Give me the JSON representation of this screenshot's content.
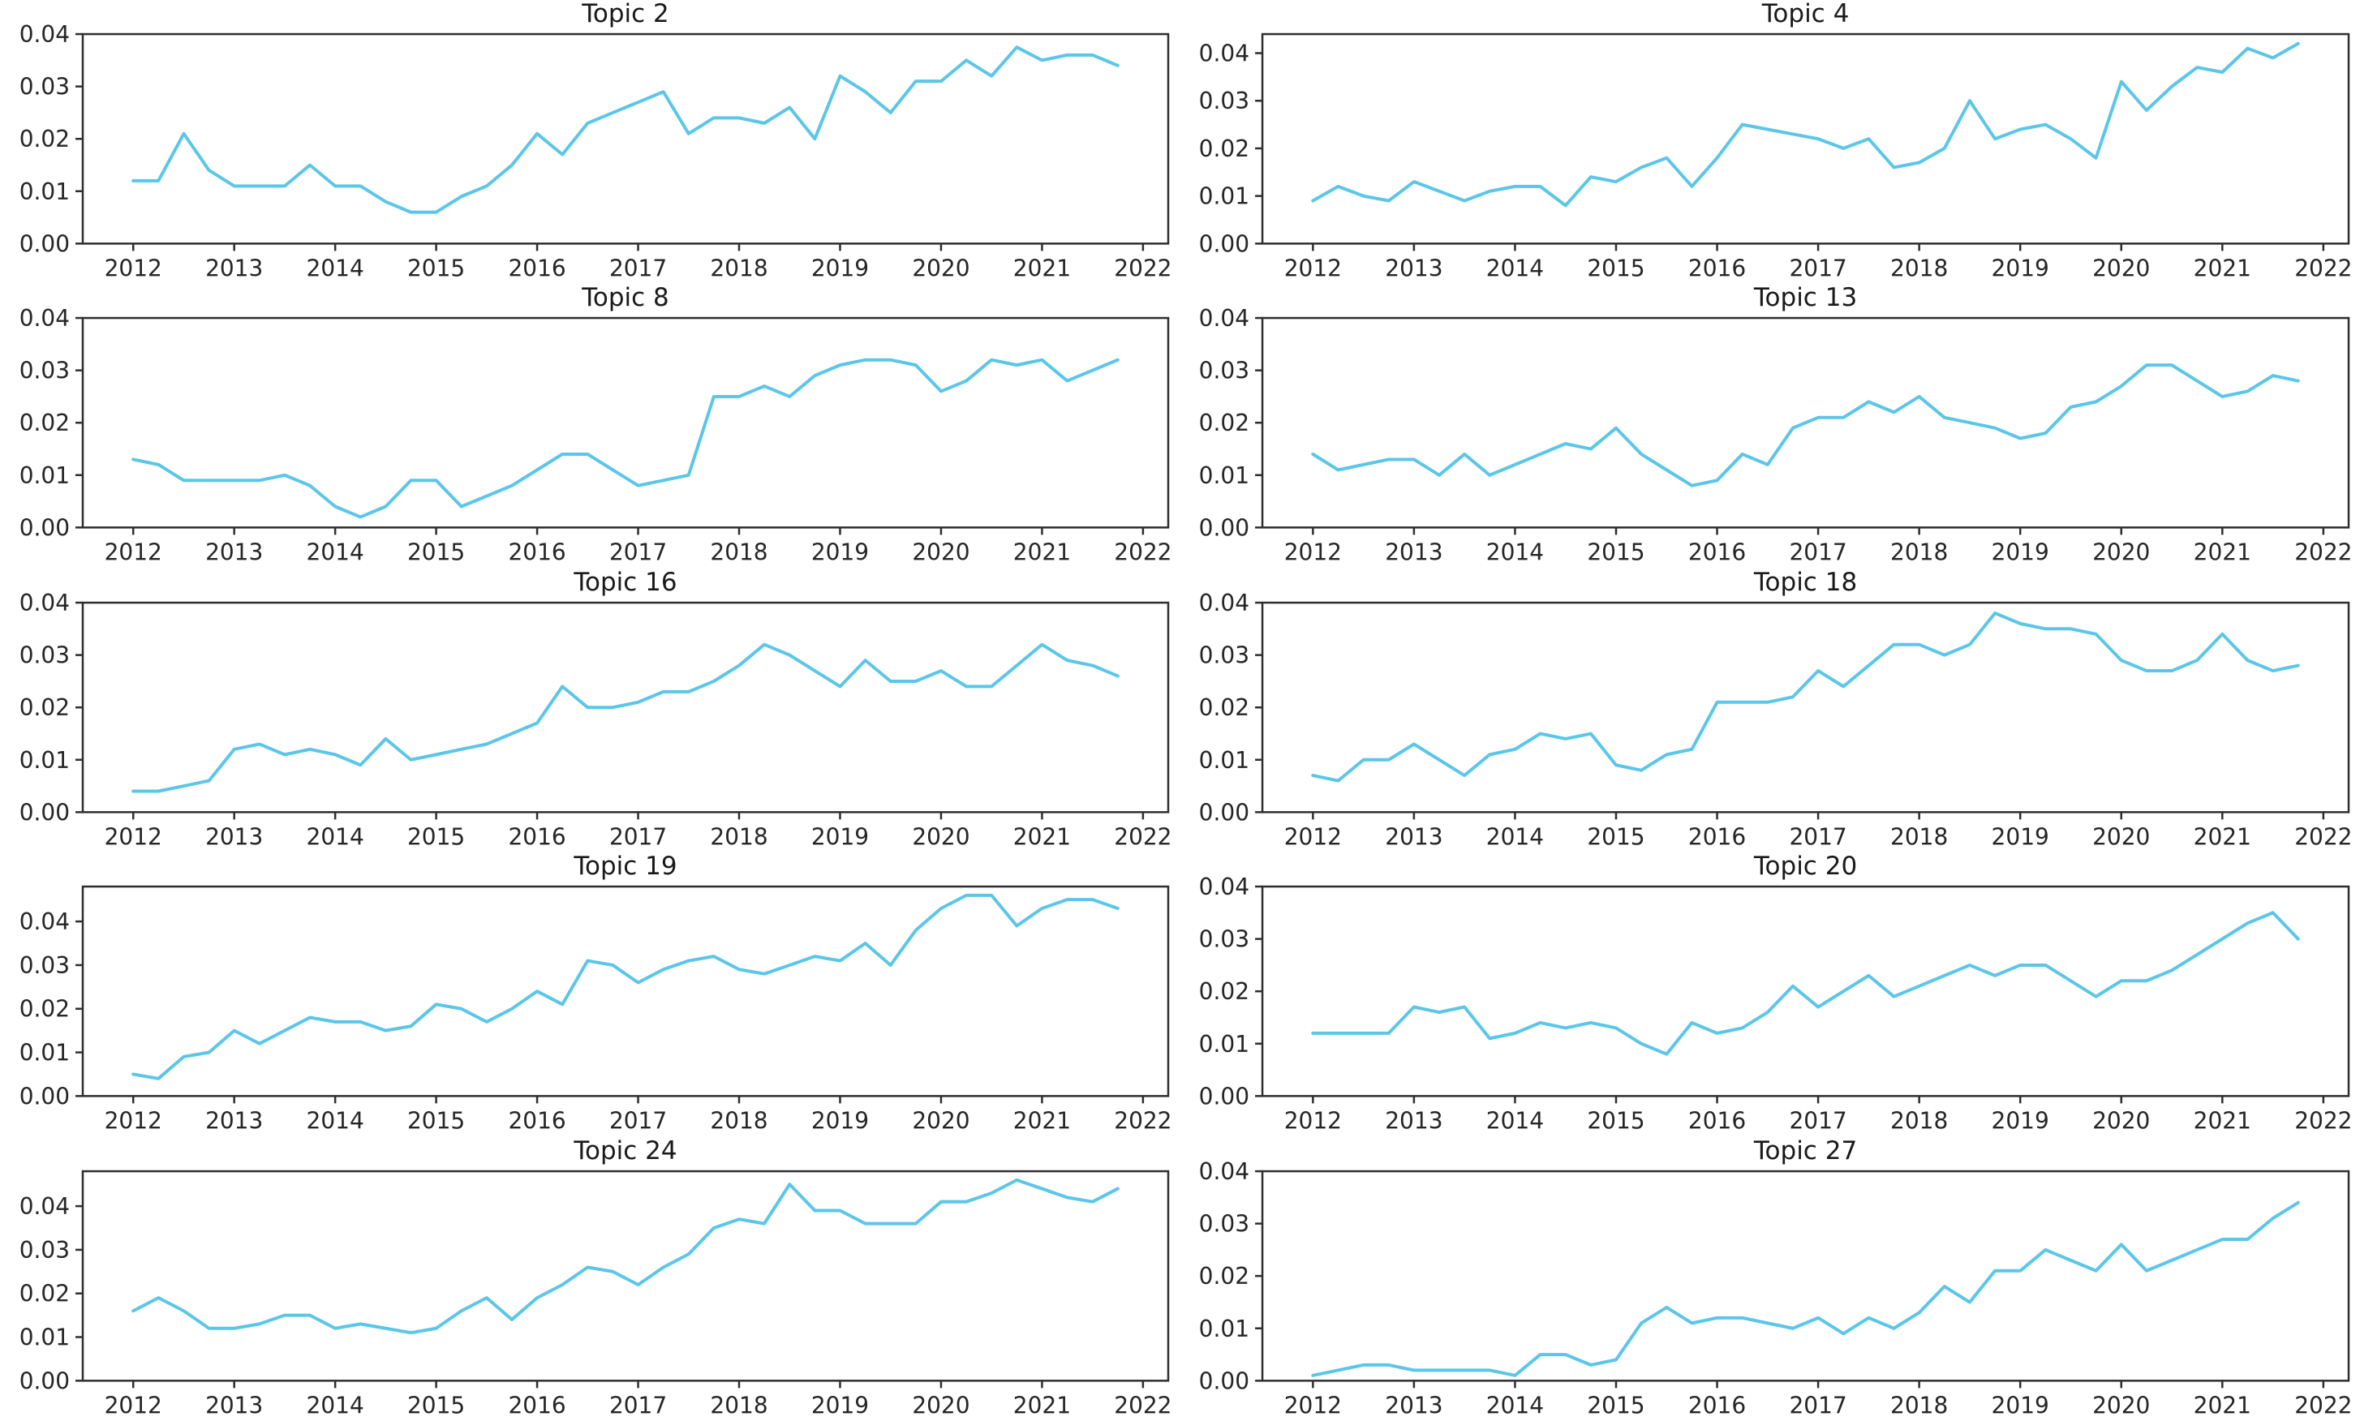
{
  "figure": {
    "background": "#ffffff",
    "line_color": "#5bc6e8",
    "spine_color": "#2e2e2e",
    "tick_color": "#2e2e2e",
    "text_color": "#1a1a1a",
    "x_tick_labels": [
      "2012",
      "2013",
      "2014",
      "2015",
      "2016",
      "2017",
      "2018",
      "2019",
      "2020",
      "2021",
      "2022"
    ],
    "y_tick_labels": [
      "0.00",
      "0.01",
      "0.02",
      "0.03",
      "0.04"
    ],
    "y_tick_values": [
      0,
      0.01,
      0.02,
      0.03,
      0.04
    ],
    "xlim": [
      2011.5,
      2022.25
    ]
  },
  "chart_data": [
    {
      "type": "line",
      "title": "Topic 2",
      "x_start": 2012,
      "x_step": 0.25,
      "xlabel": "",
      "ylabel": "",
      "ylim": [
        0,
        0.04
      ],
      "grid": false,
      "legend": "none",
      "values": [
        0.012,
        0.012,
        0.021,
        0.014,
        0.011,
        0.011,
        0.011,
        0.015,
        0.011,
        0.011,
        0.008,
        0.006,
        0.006,
        0.009,
        0.011,
        0.015,
        0.021,
        0.017,
        0.023,
        0.025,
        0.027,
        0.029,
        0.021,
        0.024,
        0.024,
        0.023,
        0.026,
        0.02,
        0.032,
        0.029,
        0.025,
        0.031,
        0.031,
        0.035,
        0.032,
        0.0375,
        0.035,
        0.036,
        0.036,
        0.034
      ]
    },
    {
      "type": "line",
      "title": "Topic 4",
      "x_start": 2012,
      "x_step": 0.25,
      "xlabel": "",
      "ylabel": "",
      "ylim": [
        0,
        0.044
      ],
      "grid": false,
      "legend": "none",
      "values": [
        0.009,
        0.012,
        0.01,
        0.009,
        0.013,
        0.011,
        0.009,
        0.011,
        0.012,
        0.012,
        0.008,
        0.014,
        0.013,
        0.016,
        0.018,
        0.012,
        0.018,
        0.025,
        0.024,
        0.023,
        0.022,
        0.02,
        0.022,
        0.016,
        0.017,
        0.02,
        0.03,
        0.022,
        0.024,
        0.025,
        0.022,
        0.018,
        0.034,
        0.028,
        0.033,
        0.037,
        0.036,
        0.041,
        0.039,
        0.042
      ]
    },
    {
      "type": "line",
      "title": "Topic 8",
      "x_start": 2012,
      "x_step": 0.25,
      "xlabel": "",
      "ylabel": "",
      "ylim": [
        0,
        0.04
      ],
      "grid": false,
      "legend": "none",
      "values": [
        0.013,
        0.012,
        0.009,
        0.009,
        0.009,
        0.009,
        0.01,
        0.008,
        0.004,
        0.002,
        0.004,
        0.009,
        0.009,
        0.004,
        0.006,
        0.008,
        0.011,
        0.014,
        0.014,
        0.011,
        0.008,
        0.009,
        0.01,
        0.025,
        0.025,
        0.027,
        0.025,
        0.029,
        0.031,
        0.032,
        0.032,
        0.031,
        0.026,
        0.028,
        0.032,
        0.031,
        0.032,
        0.028,
        0.03,
        0.032
      ]
    },
    {
      "type": "line",
      "title": "Topic 13",
      "x_start": 2012,
      "x_step": 0.25,
      "xlabel": "",
      "ylabel": "",
      "ylim": [
        0,
        0.04
      ],
      "grid": false,
      "legend": "none",
      "values": [
        0.014,
        0.011,
        0.012,
        0.013,
        0.013,
        0.01,
        0.014,
        0.01,
        0.012,
        0.014,
        0.016,
        0.015,
        0.019,
        0.014,
        0.011,
        0.008,
        0.009,
        0.014,
        0.012,
        0.019,
        0.021,
        0.021,
        0.024,
        0.022,
        0.025,
        0.021,
        0.02,
        0.019,
        0.017,
        0.018,
        0.023,
        0.024,
        0.027,
        0.031,
        0.031,
        0.028,
        0.025,
        0.026,
        0.029,
        0.028
      ]
    },
    {
      "type": "line",
      "title": "Topic 16",
      "x_start": 2012,
      "x_step": 0.25,
      "xlabel": "",
      "ylabel": "",
      "ylim": [
        0,
        0.04
      ],
      "grid": false,
      "legend": "none",
      "values": [
        0.004,
        0.004,
        0.005,
        0.006,
        0.012,
        0.013,
        0.011,
        0.012,
        0.011,
        0.009,
        0.014,
        0.01,
        0.011,
        0.012,
        0.013,
        0.015,
        0.017,
        0.024,
        0.02,
        0.02,
        0.021,
        0.023,
        0.023,
        0.025,
        0.028,
        0.032,
        0.03,
        0.027,
        0.024,
        0.029,
        0.025,
        0.025,
        0.027,
        0.024,
        0.024,
        0.028,
        0.032,
        0.029,
        0.028,
        0.026
      ]
    },
    {
      "type": "line",
      "title": "Topic 18",
      "x_start": 2012,
      "x_step": 0.25,
      "xlabel": "",
      "ylabel": "",
      "ylim": [
        0,
        0.04
      ],
      "grid": false,
      "legend": "none",
      "values": [
        0.007,
        0.006,
        0.01,
        0.01,
        0.013,
        0.01,
        0.007,
        0.011,
        0.012,
        0.015,
        0.014,
        0.015,
        0.009,
        0.008,
        0.011,
        0.012,
        0.021,
        0.021,
        0.021,
        0.022,
        0.027,
        0.024,
        0.028,
        0.032,
        0.032,
        0.03,
        0.032,
        0.038,
        0.036,
        0.035,
        0.035,
        0.034,
        0.029,
        0.027,
        0.027,
        0.029,
        0.034,
        0.029,
        0.027,
        0.028
      ]
    },
    {
      "type": "line",
      "title": "Topic 19",
      "x_start": 2012,
      "x_step": 0.25,
      "xlabel": "",
      "ylabel": "",
      "ylim": [
        0,
        0.048
      ],
      "grid": false,
      "legend": "none",
      "values": [
        0.005,
        0.004,
        0.009,
        0.01,
        0.015,
        0.012,
        0.015,
        0.018,
        0.017,
        0.017,
        0.015,
        0.016,
        0.021,
        0.02,
        0.017,
        0.02,
        0.024,
        0.021,
        0.031,
        0.03,
        0.026,
        0.029,
        0.031,
        0.032,
        0.029,
        0.028,
        0.03,
        0.032,
        0.031,
        0.035,
        0.03,
        0.038,
        0.043,
        0.046,
        0.046,
        0.039,
        0.043,
        0.045,
        0.045,
        0.043
      ]
    },
    {
      "type": "line",
      "title": "Topic 20",
      "x_start": 2012,
      "x_step": 0.25,
      "xlabel": "",
      "ylabel": "",
      "ylim": [
        0,
        0.04
      ],
      "grid": false,
      "legend": "none",
      "values": [
        0.012,
        0.012,
        0.012,
        0.012,
        0.017,
        0.016,
        0.017,
        0.011,
        0.012,
        0.014,
        0.013,
        0.014,
        0.013,
        0.01,
        0.008,
        0.014,
        0.012,
        0.013,
        0.016,
        0.021,
        0.017,
        0.02,
        0.023,
        0.019,
        0.021,
        0.023,
        0.025,
        0.023,
        0.025,
        0.025,
        0.022,
        0.019,
        0.022,
        0.022,
        0.024,
        0.027,
        0.03,
        0.033,
        0.035,
        0.03
      ]
    },
    {
      "type": "line",
      "title": "Topic 24",
      "x_start": 2012,
      "x_step": 0.25,
      "xlabel": "",
      "ylabel": "",
      "ylim": [
        0,
        0.048
      ],
      "grid": false,
      "legend": "none",
      "values": [
        0.016,
        0.019,
        0.016,
        0.012,
        0.012,
        0.013,
        0.015,
        0.015,
        0.012,
        0.013,
        0.012,
        0.011,
        0.012,
        0.016,
        0.019,
        0.014,
        0.019,
        0.022,
        0.026,
        0.025,
        0.022,
        0.026,
        0.029,
        0.035,
        0.037,
        0.036,
        0.045,
        0.039,
        0.039,
        0.036,
        0.036,
        0.036,
        0.041,
        0.041,
        0.043,
        0.046,
        0.044,
        0.042,
        0.041,
        0.044
      ]
    },
    {
      "type": "line",
      "title": "Topic 27",
      "x_start": 2012,
      "x_step": 0.25,
      "xlabel": "",
      "ylabel": "",
      "ylim": [
        0,
        0.04
      ],
      "grid": false,
      "legend": "none",
      "values": [
        0.001,
        0.002,
        0.003,
        0.003,
        0.002,
        0.002,
        0.002,
        0.002,
        0.001,
        0.005,
        0.005,
        0.003,
        0.004,
        0.011,
        0.014,
        0.011,
        0.012,
        0.012,
        0.011,
        0.01,
        0.012,
        0.009,
        0.012,
        0.01,
        0.013,
        0.018,
        0.015,
        0.021,
        0.021,
        0.025,
        0.023,
        0.021,
        0.026,
        0.021,
        0.023,
        0.025,
        0.027,
        0.027,
        0.031,
        0.034
      ]
    }
  ]
}
